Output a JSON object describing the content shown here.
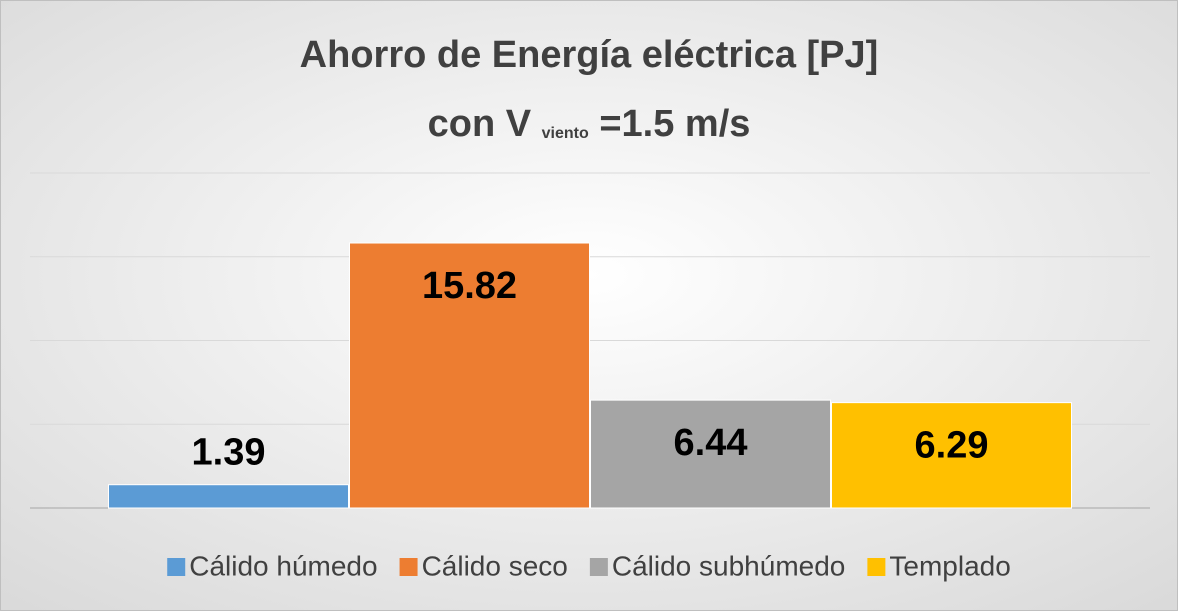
{
  "chart_data": {
    "type": "bar",
    "title": {
      "line1": "Ahorro de Energía eléctrica [PJ]",
      "line2_start": "con V",
      "line2_subscript": "viento",
      "line2_end": "=1.5 m/s"
    },
    "series": [
      {
        "name": "Cálido húmedo",
        "color": "#5b9bd5",
        "values": [
          1.39
        ]
      },
      {
        "name": "Cálido seco",
        "color": "#ed7d31",
        "values": [
          15.82
        ]
      },
      {
        "name": "Cálido subhúmedo",
        "color": "#a5a5a5",
        "values": [
          6.44
        ]
      },
      {
        "name": "Templado",
        "color": "#ffc000",
        "values": [
          6.29
        ]
      }
    ],
    "ylim": [
      0,
      20
    ],
    "yticks": [
      0,
      5,
      10,
      15,
      20
    ],
    "grid": true,
    "legend": "bottom"
  }
}
